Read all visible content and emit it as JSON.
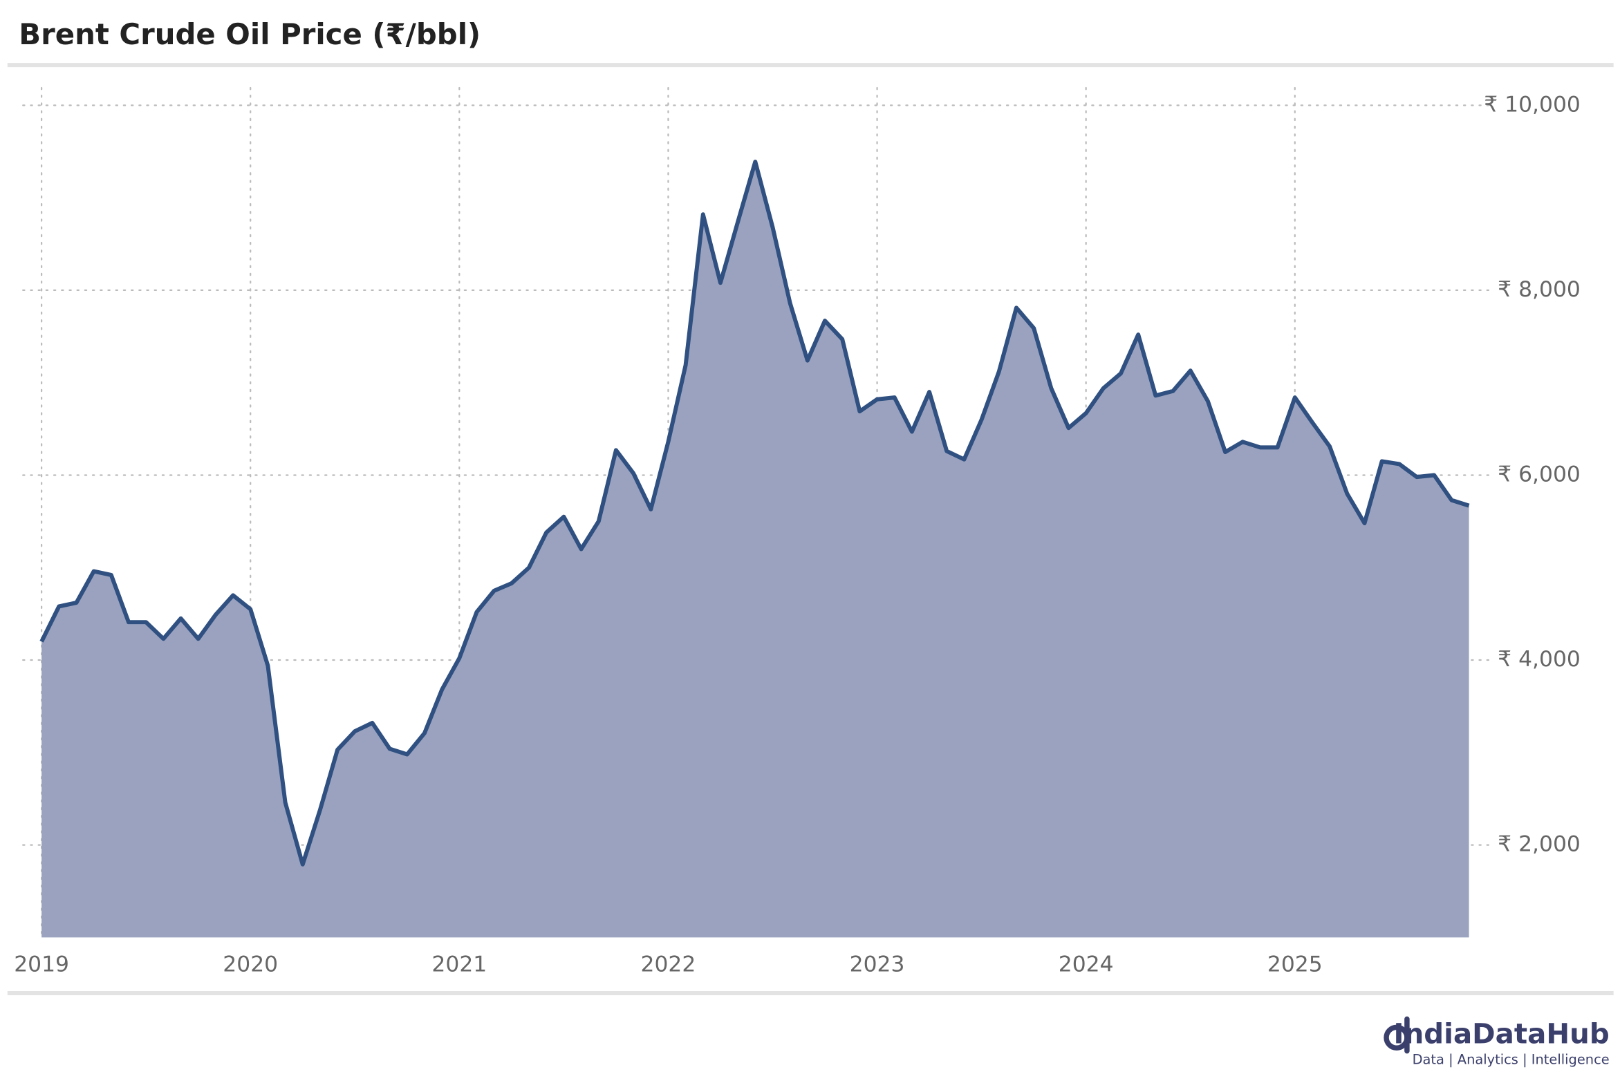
{
  "chart_data": {
    "type": "area",
    "title": "Brent Crude Oil Price (₹/bbl)",
    "categories": [
      "2019",
      null,
      null,
      null,
      null,
      null,
      null,
      null,
      null,
      null,
      null,
      null,
      "2020",
      null,
      null,
      null,
      null,
      null,
      null,
      null,
      null,
      null,
      null,
      null,
      "2021",
      null,
      null,
      null,
      null,
      null,
      null,
      null,
      null,
      null,
      null,
      null,
      "2022",
      null,
      null,
      null,
      null,
      null,
      null,
      null,
      null,
      null,
      null,
      null,
      "2023",
      null,
      null,
      null,
      null,
      null,
      null,
      null,
      null,
      null,
      null,
      null,
      "2024",
      null,
      null,
      null,
      null,
      null,
      null,
      null,
      null,
      null,
      null,
      null,
      "2025",
      null,
      null,
      null,
      null,
      null,
      null,
      null,
      null,
      null,
      null
    ],
    "series": [
      {
        "name": "Brent Crude Oil Price",
        "color": "#2f5080",
        "fill": "#9aa2bf",
        "values": [
          4200,
          4580,
          4620,
          4960,
          4920,
          4410,
          4410,
          4230,
          4450,
          4230,
          4490,
          4700,
          4550,
          3940,
          2460,
          1790,
          2380,
          3030,
          3230,
          3320,
          3040,
          2980,
          3210,
          3680,
          4020,
          4520,
          4750,
          4830,
          5000,
          5380,
          5550,
          5200,
          5500,
          6270,
          6020,
          5630,
          6360,
          7190,
          8820,
          8080,
          8740,
          9390,
          8680,
          7860,
          7240,
          7670,
          7470,
          6690,
          6820,
          6840,
          6470,
          6900,
          6260,
          6170,
          6600,
          7120,
          7810,
          7590,
          6940,
          6510,
          6670,
          6940,
          7100,
          7520,
          6860,
          6910,
          7130,
          6800,
          6250,
          6360,
          6300,
          6300,
          6840,
          6570,
          6310,
          5800,
          5480,
          6150,
          6120,
          5980,
          6000,
          5730,
          5670
        ]
      }
    ],
    "ylim": [
      1000,
      10200
    ],
    "yticks": [
      {
        "value": 2000,
        "label": "₹ 2,000"
      },
      {
        "value": 4000,
        "label": "₹ 4,000"
      },
      {
        "value": 6000,
        "label": "₹ 6,000"
      },
      {
        "value": 8000,
        "label": "₹ 8,000"
      },
      {
        "value": 10000,
        "label": "₹ 10,000"
      }
    ],
    "grid": true,
    "brand": {
      "name": "IndiaDataHub",
      "tagline": "Data | Analytics | Intelligence"
    }
  }
}
